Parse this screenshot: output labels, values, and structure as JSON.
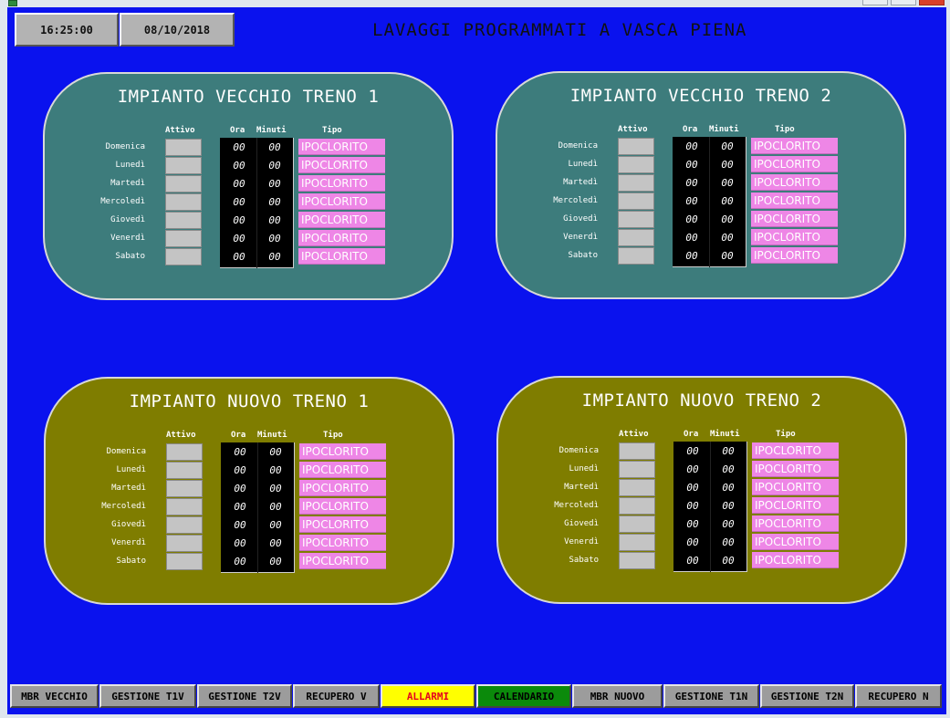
{
  "header": {
    "time": "16:25:00",
    "date": "08/10/2018",
    "title": "LAVAGGI PROGRAMMATI A VASCA PIENA"
  },
  "columns": {
    "attivo": "Attivo",
    "ora": "Ora",
    "minuti": "Minuti",
    "tipo": "Tipo"
  },
  "panels": [
    {
      "title": "IMPIANTO VECCHIO TRENO 1",
      "color": "#3d7c7c",
      "rows": [
        {
          "day": "Domenica",
          "ora": "00",
          "minuti": "00",
          "tipo": "IPOCLORITO"
        },
        {
          "day": "Lunedì",
          "ora": "00",
          "minuti": "00",
          "tipo": "IPOCLORITO"
        },
        {
          "day": "Martedì",
          "ora": "00",
          "minuti": "00",
          "tipo": "IPOCLORITO"
        },
        {
          "day": "Mercoledì",
          "ora": "00",
          "minuti": "00",
          "tipo": "IPOCLORITO"
        },
        {
          "day": "Giovedì",
          "ora": "00",
          "minuti": "00",
          "tipo": "IPOCLORITO"
        },
        {
          "day": "Venerdì",
          "ora": "00",
          "minuti": "00",
          "tipo": "IPOCLORITO"
        },
        {
          "day": "Sabato",
          "ora": "00",
          "minuti": "00",
          "tipo": "IPOCLORITO"
        }
      ]
    },
    {
      "title": "IMPIANTO VECCHIO TRENO 2",
      "color": "#3d7c7c",
      "rows": [
        {
          "day": "Domenica",
          "ora": "00",
          "minuti": "00",
          "tipo": "IPOCLORITO"
        },
        {
          "day": "Lunedì",
          "ora": "00",
          "minuti": "00",
          "tipo": "IPOCLORITO"
        },
        {
          "day": "Martedì",
          "ora": "00",
          "minuti": "00",
          "tipo": "IPOCLORITO"
        },
        {
          "day": "Mercoledì",
          "ora": "00",
          "minuti": "00",
          "tipo": "IPOCLORITO"
        },
        {
          "day": "Giovedì",
          "ora": "00",
          "minuti": "00",
          "tipo": "IPOCLORITO"
        },
        {
          "day": "Venerdì",
          "ora": "00",
          "minuti": "00",
          "tipo": "IPOCLORITO"
        },
        {
          "day": "Sabato",
          "ora": "00",
          "minuti": "00",
          "tipo": "IPOCLORITO"
        }
      ]
    },
    {
      "title": "IMPIANTO NUOVO TRENO 1",
      "color": "#7f7d00",
      "rows": [
        {
          "day": "Domenica",
          "ora": "00",
          "minuti": "00",
          "tipo": "IPOCLORITO"
        },
        {
          "day": "Lunedì",
          "ora": "00",
          "minuti": "00",
          "tipo": "IPOCLORITO"
        },
        {
          "day": "Martedì",
          "ora": "00",
          "minuti": "00",
          "tipo": "IPOCLORITO"
        },
        {
          "day": "Mercoledì",
          "ora": "00",
          "minuti": "00",
          "tipo": "IPOCLORITO"
        },
        {
          "day": "Giovedì",
          "ora": "00",
          "minuti": "00",
          "tipo": "IPOCLORITO"
        },
        {
          "day": "Venerdì",
          "ora": "00",
          "minuti": "00",
          "tipo": "IPOCLORITO"
        },
        {
          "day": "Sabato",
          "ora": "00",
          "minuti": "00",
          "tipo": "IPOCLORITO"
        }
      ]
    },
    {
      "title": "IMPIANTO NUOVO TRENO 2",
      "color": "#7f7d00",
      "rows": [
        {
          "day": "Domenica",
          "ora": "00",
          "minuti": "00",
          "tipo": "IPOCLORITO"
        },
        {
          "day": "Lunedì",
          "ora": "00",
          "minuti": "00",
          "tipo": "IPOCLORITO"
        },
        {
          "day": "Martedì",
          "ora": "00",
          "minuti": "00",
          "tipo": "IPOCLORITO"
        },
        {
          "day": "Mercoledì",
          "ora": "00",
          "minuti": "00",
          "tipo": "IPOCLORITO"
        },
        {
          "day": "Giovedì",
          "ora": "00",
          "minuti": "00",
          "tipo": "IPOCLORITO"
        },
        {
          "day": "Venerdì",
          "ora": "00",
          "minuti": "00",
          "tipo": "IPOCLORITO"
        },
        {
          "day": "Sabato",
          "ora": "00",
          "minuti": "00",
          "tipo": "IPOCLORITO"
        }
      ]
    }
  ],
  "nav": [
    {
      "label": "MBR VECCHIO"
    },
    {
      "label": "GESTIONE T1V"
    },
    {
      "label": "GESTIONE T2V"
    },
    {
      "label": "RECUPERO V"
    },
    {
      "label": "ALLARMI",
      "color": "#ffff00",
      "text_color": "#e5001f"
    },
    {
      "label": "CALENDARIO",
      "color": "#0b8a0b"
    },
    {
      "label": "MBR NUOVO"
    },
    {
      "label": "GESTIONE T1N"
    },
    {
      "label": "GESTIONE T2N"
    },
    {
      "label": "RECUPERO N"
    }
  ],
  "colors": {
    "screen_background": "#0a12ee",
    "tipo_background": "#ee86e6",
    "attivo_box": "#c4c4c4"
  }
}
